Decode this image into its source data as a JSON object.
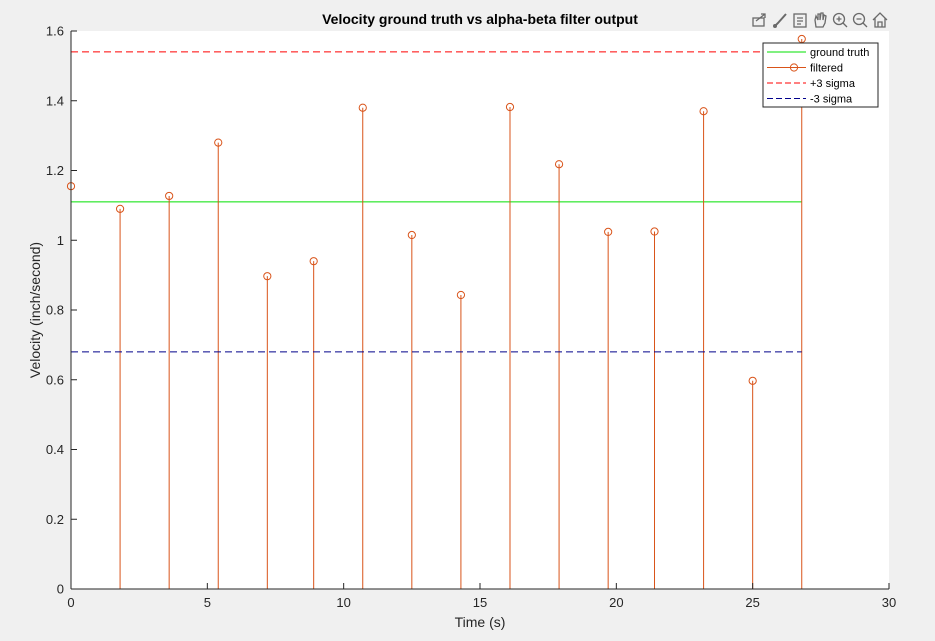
{
  "chart_data": {
    "type": "stem",
    "title": "Velocity ground truth vs alpha-beta filter output",
    "xlabel": "Time (s)",
    "ylabel": "Velocity (inch/second)",
    "xlim": [
      0,
      30
    ],
    "ylim": [
      0,
      1.6
    ],
    "xticks": [
      0,
      5,
      10,
      15,
      20,
      25,
      30
    ],
    "yticks": [
      0,
      0.2,
      0.4,
      0.6,
      0.8,
      1,
      1.2,
      1.4,
      1.6
    ],
    "xtick_labels": [
      "0",
      "5",
      "10",
      "15",
      "20",
      "25",
      "30"
    ],
    "ytick_labels": [
      "0",
      "0.2",
      "0.4",
      "0.6",
      "0.8",
      "1",
      "1.2",
      "1.4",
      "1.6"
    ],
    "grid": false,
    "legend_position": "top-right",
    "series": [
      {
        "name": "ground truth",
        "kind": "line",
        "color": "#00e000",
        "style": "solid",
        "x": [
          0,
          26.8
        ],
        "y": [
          1.11,
          1.11
        ]
      },
      {
        "name": "filtered",
        "kind": "stem",
        "color": "#d95319",
        "marker": "circle",
        "x": [
          0,
          1.8,
          3.6,
          5.4,
          7.2,
          8.9,
          10.7,
          12.5,
          14.3,
          16.1,
          17.9,
          19.7,
          21.4,
          23.2,
          25.0,
          26.8
        ],
        "y": [
          1.155,
          1.09,
          1.127,
          1.28,
          0.897,
          0.94,
          1.38,
          1.015,
          0.843,
          1.382,
          1.218,
          1.024,
          1.025,
          1.37,
          0.597,
          1.577
        ]
      },
      {
        "name": "+3 sigma",
        "kind": "line",
        "color": "#ff0000",
        "style": "dashed",
        "x": [
          0,
          26.8
        ],
        "y": [
          1.54,
          1.54
        ]
      },
      {
        "name": "-3 sigma",
        "kind": "line",
        "color": "#00008b",
        "style": "dashed",
        "x": [
          0,
          26.8
        ],
        "y": [
          0.68,
          0.68
        ]
      }
    ]
  },
  "toolbar": {
    "icons": [
      "export-icon",
      "brush-icon",
      "data-tip-icon",
      "pan-icon",
      "zoom-in-icon",
      "zoom-out-icon",
      "home-icon"
    ]
  }
}
